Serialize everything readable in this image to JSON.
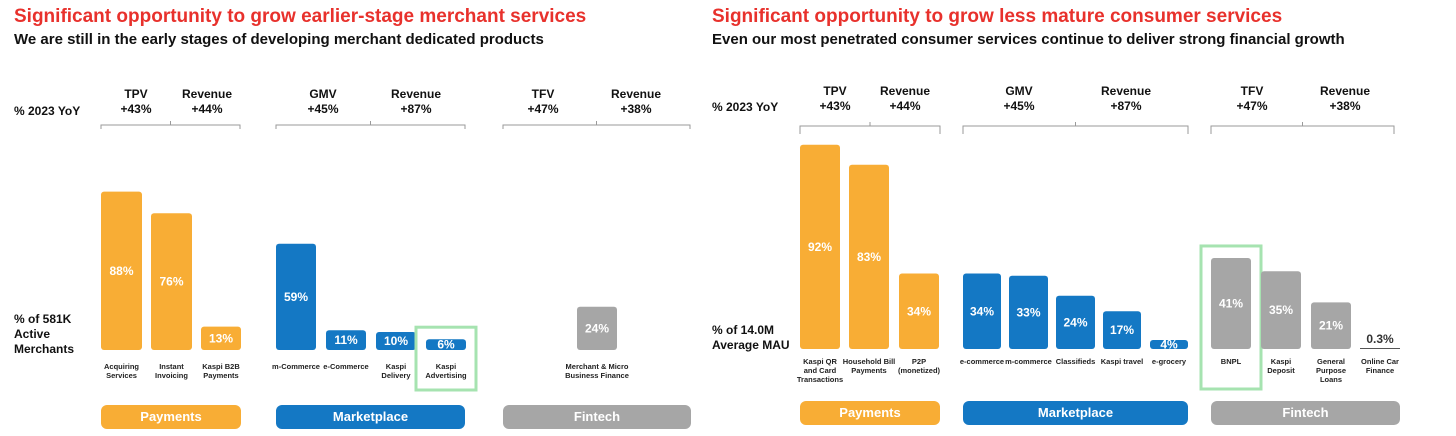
{
  "colors": {
    "orange": "#F8AD35",
    "blue": "#1478C4",
    "gray": "#A6A6A6",
    "red": "#E8312C",
    "green": "#A6E3B0"
  },
  "chart_data": [
    {
      "type": "bar",
      "title": "Significant opportunity to grow earlier-stage merchant services",
      "subtitle": "We are still in the early stages of developing merchant dedicated products",
      "yoy_label": "% 2023 YoY",
      "ylabel": "% of 581K Active Merchants",
      "ylabel_lines": [
        "% of 581K",
        "Active",
        "Merchants"
      ],
      "ylim": [
        0,
        100
      ],
      "groups": [
        {
          "name": "Payments",
          "color": "#F8AD35",
          "metrics": [
            {
              "name": "TPV",
              "value": "+43%"
            },
            {
              "name": "Revenue",
              "value": "+44%"
            }
          ],
          "bars": [
            {
              "label_lines": [
                "Acquiring",
                "Services"
              ],
              "value": 88,
              "value_label": "88%"
            },
            {
              "label_lines": [
                "Instant",
                "Invoicing"
              ],
              "value": 76,
              "value_label": "76%"
            },
            {
              "label_lines": [
                "Kaspi B2B",
                "Payments"
              ],
              "value": 13,
              "value_label": "13%"
            }
          ]
        },
        {
          "name": "Marketplace",
          "color": "#1478C4",
          "metrics": [
            {
              "name": "GMV",
              "value": "+45%"
            },
            {
              "name": "Revenue",
              "value": "+87%"
            }
          ],
          "bars": [
            {
              "label_lines": [
                "m-Commerce"
              ],
              "value": 59,
              "value_label": "59%"
            },
            {
              "label_lines": [
                "e-Commerce"
              ],
              "value": 11,
              "value_label": "11%"
            },
            {
              "label_lines": [
                "Kaspi",
                "Delivery"
              ],
              "value": 10,
              "value_label": "10%"
            },
            {
              "label_lines": [
                "Kaspi",
                "Advertising"
              ],
              "value": 6,
              "value_label": "6%",
              "highlight": true
            }
          ]
        },
        {
          "name": "Fintech",
          "color": "#A6A6A6",
          "metrics": [
            {
              "name": "TFV",
              "value": "+47%"
            },
            {
              "name": "Revenue",
              "value": "+38%"
            }
          ],
          "bars": [
            {
              "label_lines": [
                "Merchant & Micro",
                "Business Finance"
              ],
              "value": 24,
              "value_label": "24%"
            }
          ]
        }
      ]
    },
    {
      "type": "bar",
      "title": "Significant opportunity to grow less mature consumer services",
      "subtitle": "Even our most penetrated consumer services continue to deliver strong financial growth",
      "yoy_label": "% 2023 YoY",
      "ylabel": "% of 14.0M Average MAU",
      "ylabel_lines": [
        "% of 14.0M",
        "Average MAU"
      ],
      "ylim": [
        0,
        100
      ],
      "groups": [
        {
          "name": "Payments",
          "color": "#F8AD35",
          "metrics": [
            {
              "name": "TPV",
              "value": "+43%"
            },
            {
              "name": "Revenue",
              "value": "+44%"
            }
          ],
          "bars": [
            {
              "label_lines": [
                "Kaspi QR",
                "and Card",
                "Transactions"
              ],
              "value": 92,
              "value_label": "92%"
            },
            {
              "label_lines": [
                "Household Bill",
                "Payments"
              ],
              "value": 83,
              "value_label": "83%"
            },
            {
              "label_lines": [
                "P2P",
                "(monetized)"
              ],
              "value": 34,
              "value_label": "34%"
            }
          ]
        },
        {
          "name": "Marketplace",
          "color": "#1478C4",
          "metrics": [
            {
              "name": "GMV",
              "value": "+45%"
            },
            {
              "name": "Revenue",
              "value": "+87%"
            }
          ],
          "bars": [
            {
              "label_lines": [
                "e-commerce"
              ],
              "value": 34,
              "value_label": "34%"
            },
            {
              "label_lines": [
                "m-commerce"
              ],
              "value": 33,
              "value_label": "33%"
            },
            {
              "label_lines": [
                "Classifieds"
              ],
              "value": 24,
              "value_label": "24%"
            },
            {
              "label_lines": [
                "Kaspi travel"
              ],
              "value": 17,
              "value_label": "17%"
            },
            {
              "label_lines": [
                "e-grocery"
              ],
              "value": 4,
              "value_label": "4%"
            }
          ]
        },
        {
          "name": "Fintech",
          "color": "#A6A6A6",
          "metrics": [
            {
              "name": "TFV",
              "value": "+47%"
            },
            {
              "name": "Revenue",
              "value": "+38%"
            }
          ],
          "bars": [
            {
              "label_lines": [
                "BNPL"
              ],
              "value": 41,
              "value_label": "41%",
              "highlight": true
            },
            {
              "label_lines": [
                "Kaspi",
                "Deposit"
              ],
              "value": 35,
              "value_label": "35%"
            },
            {
              "label_lines": [
                "General",
                "Purpose",
                "Loans"
              ],
              "value": 21,
              "value_label": "21%"
            },
            {
              "label_lines": [
                "Online Car",
                "Finance"
              ],
              "value": 0.3,
              "value_label": "0.3%"
            }
          ]
        }
      ]
    }
  ]
}
